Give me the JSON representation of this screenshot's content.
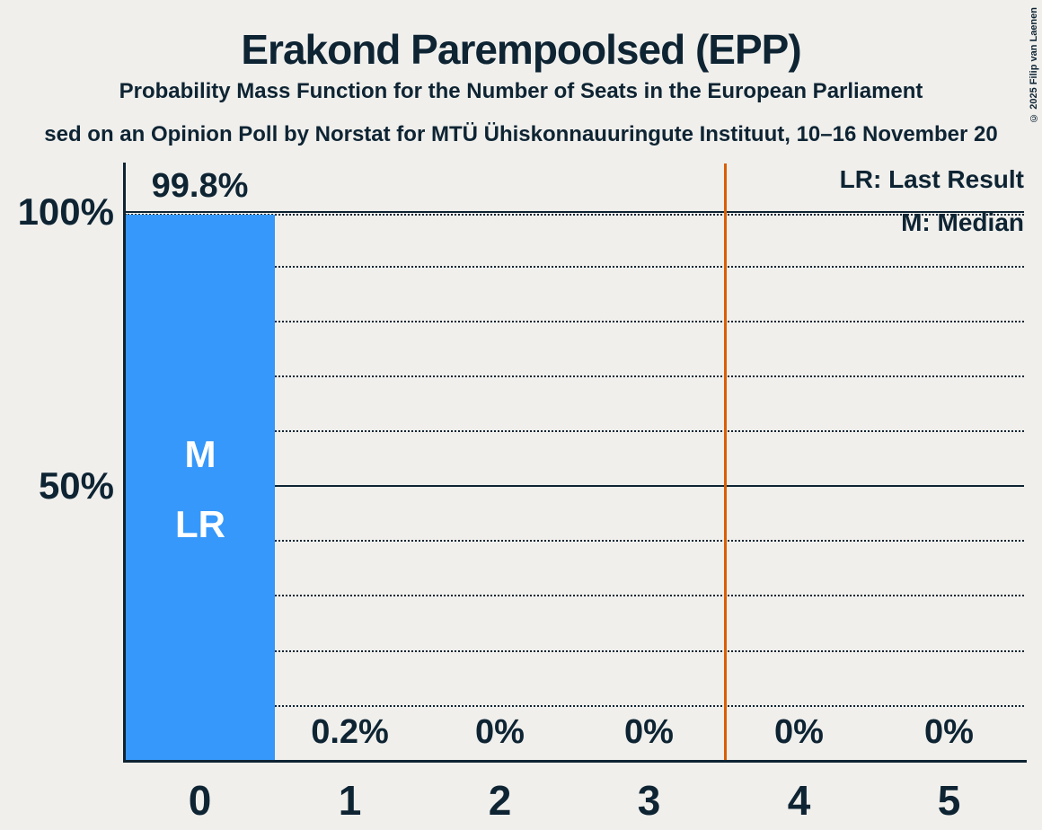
{
  "title": "Erakond Parempoolsed (EPP)",
  "subtitle": "Probability Mass Function for the Number of Seats in the European Parliament",
  "source_line": "sed on an Opinion Poll by Norstat for MTÜ Ühiskonnauuringute Instituut, 10–16 November 20",
  "copyright": "© 2025 Filip van Laenen",
  "legend": {
    "last_result": "LR: Last Result",
    "median": "M: Median"
  },
  "colors": {
    "background": "#f0efec",
    "text": "#0e2433",
    "bar": "#3598fa",
    "threshold_line": "#d95f02",
    "bar_annotation_text": "#ffffff"
  },
  "chart_data": {
    "type": "bar",
    "title": "Erakond Parempoolsed (EPP)",
    "subtitle": "Probability Mass Function for the Number of Seats in the European Parliament",
    "categories": [
      "0",
      "1",
      "2",
      "3",
      "4",
      "5"
    ],
    "values": [
      99.8,
      0.2,
      0,
      0,
      0,
      0
    ],
    "value_labels": [
      "99.8%",
      "0.2%",
      "0%",
      "0%",
      "0%",
      "0%"
    ],
    "xlabel": "",
    "ylabel": "",
    "ylim": [
      0,
      100
    ],
    "y_tick_labels": [
      "100%",
      "50%"
    ],
    "grid": "dotted horizontal lines every 10%, solid lines at 100% and 50%",
    "legend_position": "top-right",
    "legend_entries": [
      "LR: Last Result",
      "M: Median"
    ],
    "bar_annotations": {
      "category": "0",
      "labels": [
        "M",
        "LR"
      ],
      "meaning": [
        "Median",
        "Last Result"
      ]
    },
    "vertical_line_x": 3.5,
    "vertical_line_color": "#d95f02"
  }
}
